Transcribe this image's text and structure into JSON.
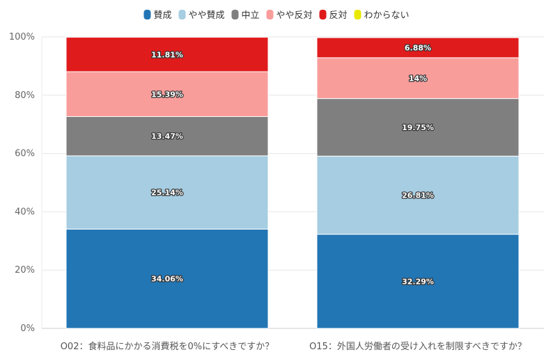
{
  "chart_data": {
    "type": "bar",
    "stacked": true,
    "percent": true,
    "categories": [
      "O02：食料品にかかる消費税を0%にすべきですか？",
      "O15：外国人労働者の受け入れを制限すべきですか？"
    ],
    "series": [
      {
        "name": "賛成",
        "color": "#2276b4",
        "values": [
          34.06,
          32.29
        ],
        "labels": [
          "34.06%",
          "32.29%"
        ]
      },
      {
        "name": "やや賛成",
        "color": "#a6cde2",
        "values": [
          25.14,
          26.81
        ],
        "labels": [
          "25.14%",
          "26.81%"
        ]
      },
      {
        "name": "中立",
        "color": "#7f7f7f",
        "values": [
          13.47,
          19.75
        ],
        "labels": [
          "13.47%",
          "19.75%"
        ]
      },
      {
        "name": "やや反対",
        "color": "#f99d9b",
        "values": [
          15.39,
          14
        ],
        "labels": [
          "15.39%",
          "14%"
        ]
      },
      {
        "name": "反対",
        "color": "#e01b1c",
        "values": [
          11.81,
          6.88
        ],
        "labels": [
          "11.81%",
          "6.88%"
        ]
      },
      {
        "name": "わからない",
        "color": "#e8e800",
        "values": [
          0,
          0
        ],
        "labels": [
          "",
          ""
        ]
      }
    ],
    "ylim": [
      0,
      100
    ],
    "yticks": [
      "0%",
      "20%",
      "40%",
      "60%",
      "80%",
      "100%"
    ],
    "grid": true,
    "legend_position": "top-center"
  }
}
